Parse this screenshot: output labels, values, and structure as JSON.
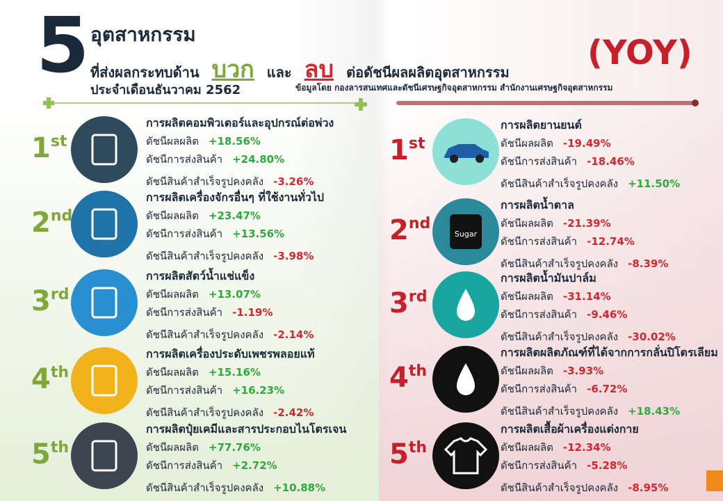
{
  "header": {
    "big_number": "5",
    "line1": "อุตสาหกรรม",
    "line2_prefix": "ที่ส่งผลกระทบด้าน",
    "positive_word": "บวก",
    "and_word": "และ",
    "negative_word": "ลบ",
    "line2_suffix": "ต่อดัชนีผลผลิตอุตสาหกรรม",
    "line3": "ประจำเดือนธันวาคม  2562",
    "yoy": "(YOY)",
    "source": "ข้อมูลโดย  กองลารสนเทศและดัชนีเศรษฐกิจอุตสาหกรรม สำนักงานเศรษฐกิจอุตสาหกรรม"
  },
  "positive": [
    {
      "rank": "1",
      "suffix": "st",
      "title": "การผลิตคอมพิวเตอร์และอุปกรณ์ต่อพ่วง",
      "rows": [
        {
          "label": "ดัชนีผลผลิต",
          "value": "+18.56%"
        },
        {
          "label": "ดัชนีการส่งสินค้า",
          "value": "+24.80%"
        },
        {
          "label": "ดัชนีสินค้าสำเร็จรูปคงคลัง",
          "value": "-3.26%"
        }
      ]
    },
    {
      "rank": "2",
      "suffix": "nd",
      "title": "การผลิตเครื่องจักรอื่นๆ ที่ใช้งานทั่วไป",
      "rows": [
        {
          "label": "ดัชนีผลผลิต",
          "value": "+23.47%"
        },
        {
          "label": "ดัชนีการส่งสินค้า",
          "value": "+13.56%"
        },
        {
          "label": "ดัชนีสินค้าสำเร็จรูปคงคลัง",
          "value": "-3.98%"
        }
      ]
    },
    {
      "rank": "3",
      "suffix": "rd",
      "title": "การผลิตสัตว์น้ำแช่แข็ง",
      "rows": [
        {
          "label": "ดัชนีผลผลิต",
          "value": "+13.07%"
        },
        {
          "label": "ดัชนีการส่งสินค้า",
          "value": "-1.19%"
        },
        {
          "label": "ดัชนีสินค้าสำเร็จรูปคงคลัง",
          "value": "-2.14%"
        }
      ]
    },
    {
      "rank": "4",
      "suffix": "th",
      "title": "การผลิตเครื่องประดับเพชรพลอยแท้",
      "rows": [
        {
          "label": "ดัชนีผลผลิต",
          "value": "+15.16%"
        },
        {
          "label": "ดัชนีการส่งสินค้า",
          "value": "+16.23%"
        },
        {
          "label": "ดัชนีสินค้าสำเร็จรูปคงคลัง",
          "value": "-2.42%"
        }
      ]
    },
    {
      "rank": "5",
      "suffix": "th",
      "title": "การผลิตปุ๋ยเคมีและสารประกอบไนโตรเจน",
      "rows": [
        {
          "label": "ดัชนีผลผลิต",
          "value": "+77.76%"
        },
        {
          "label": "ดัชนีการส่งสินค้า",
          "value": "+2.72%"
        },
        {
          "label": "ดัชนีสินค้าสำเร็จรูปคงคลัง",
          "value": "+10.88%"
        }
      ]
    }
  ],
  "negative": [
    {
      "rank": "1",
      "suffix": "st",
      "title": "การผลิตยานยนต์",
      "rows": [
        {
          "label": "ดัชนีผลผลิต",
          "value": "-19.49%"
        },
        {
          "label": "ดัชนีการส่งสินค้า",
          "value": "-18.46%"
        },
        {
          "label": "ดัชนีสินค้าสำเร็จรูปคงคลัง",
          "value": "+11.50%"
        }
      ]
    },
    {
      "rank": "2",
      "suffix": "nd",
      "title": "การผลิตน้ำตาล",
      "icon_text": "Sugar",
      "rows": [
        {
          "label": "ดัชนีผลผลิต",
          "value": "-21.39%"
        },
        {
          "label": "ดัชนีการส่งสินค้า",
          "value": "-12.74%"
        },
        {
          "label": "ดัชนีสินค้าสำเร็จรูปคงคลัง",
          "value": "-8.39%"
        }
      ]
    },
    {
      "rank": "3",
      "suffix": "rd",
      "title": "การผลิตน้ำมันปาล์ม",
      "rows": [
        {
          "label": "ดัชนีผลผลิต",
          "value": "-31.14%"
        },
        {
          "label": "ดัชนีการส่งสินค้า",
          "value": "-9.46%"
        },
        {
          "label": "ดัชนีสินค้าสำเร็จรูปคงคลัง",
          "value": "-30.02%"
        }
      ]
    },
    {
      "rank": "4",
      "suffix": "th",
      "title": "การผลิตผลิตภัณฑ์ที่ได้จากการกลั่นปิโตรเลียม",
      "rows": [
        {
          "label": "ดัชนีผลผลิต",
          "value": "-3.93%"
        },
        {
          "label": "ดัชนีการส่งสินค้า",
          "value": "-6.72%"
        },
        {
          "label": "ดัชนีสินค้าสำเร็จรูปคงคลัง",
          "value": "+18.43%"
        }
      ]
    },
    {
      "rank": "5",
      "suffix": "th",
      "title": "การผลิตเสื้อผ้าเครื่องแต่งกาย",
      "rows": [
        {
          "label": "ดัชนีผลผลิต",
          "value": "-12.34%"
        },
        {
          "label": "ดัชนีการส่งสินค้า",
          "value": "-5.28%"
        },
        {
          "label": "ดัชนีสินค้าสำเร็จรูปคงคลัง",
          "value": "-8.95%"
        }
      ]
    }
  ]
}
